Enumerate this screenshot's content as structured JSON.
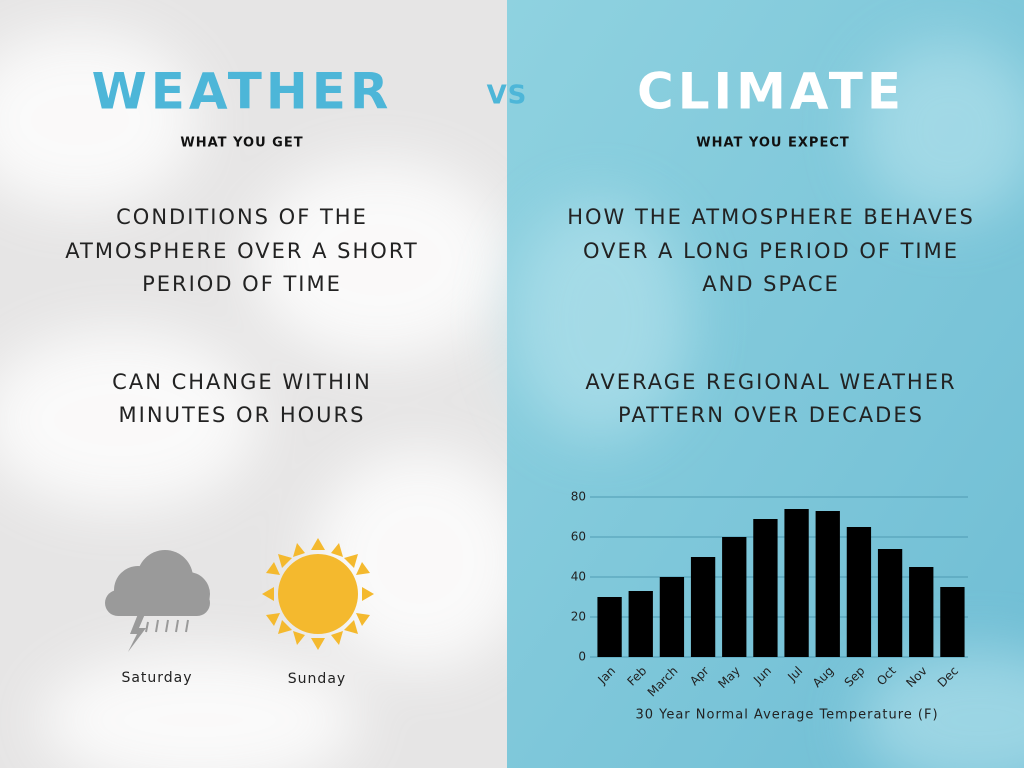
{
  "left": {
    "title": "WEATHER",
    "subtitle": "WHAT YOU GET",
    "paragraphs": [
      [
        "CONDITIONS OF THE",
        "ATMOSPHERE OVER A SHORT",
        "PERIOD OF TIME"
      ],
      [
        "CAN CHANGE WITHIN",
        "MINUTES OR HOURS"
      ]
    ],
    "day_labels": [
      "Saturday",
      "Sunday"
    ]
  },
  "vs": "VS",
  "right": {
    "title": "CLIMATE",
    "subtitle": "WHAT YOU EXPECT",
    "paragraphs": [
      [
        "HOW THE ATMOSPHERE BEHAVES",
        "OVER A LONG PERIOD OF TIME",
        "AND SPACE"
      ],
      [
        "AVERAGE REGIONAL WEATHER",
        "PATTERN OVER DECADES"
      ]
    ]
  },
  "chart_data": {
    "type": "bar",
    "x_label": "30 Year Normal Average Temperature (F)",
    "categories": [
      "Jan",
      "Feb",
      "March",
      "Apr",
      "May",
      "Jun",
      "Jul",
      "Aug",
      "Sep",
      "Oct",
      "Nov",
      "Dec"
    ],
    "values": [
      30,
      33,
      40,
      50,
      60,
      69,
      74,
      73,
      65,
      54,
      45,
      35
    ],
    "color": "#000000",
    "ylim": [
      0,
      80
    ],
    "yticks": [
      0,
      20,
      40,
      60,
      80
    ],
    "grid": true
  }
}
